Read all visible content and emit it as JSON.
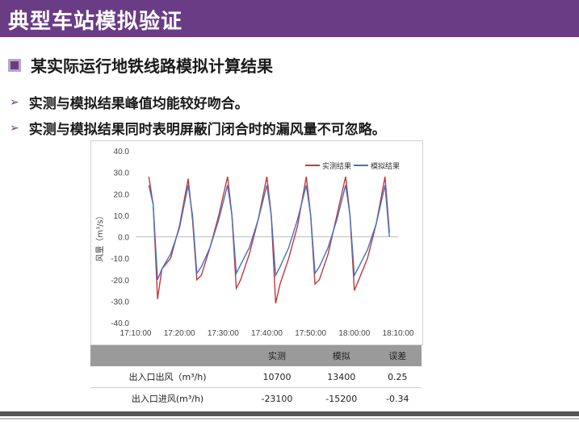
{
  "slide": {
    "title": "典型车站模拟验证",
    "bullet_main": "某实际运行地铁线路模拟计算结果",
    "bullets": [
      "实测与模拟结果峰值均能较好吻合。",
      "实测与模拟结果同时表明屏蔽门闭合时的漏风量不可忽略。"
    ]
  },
  "colors": {
    "accent": "#6b3c86",
    "measured": "#c0393b",
    "simulated": "#4472c4"
  },
  "chart_data": {
    "type": "line",
    "ylabel": "风量（m³/s）",
    "xlabel": "",
    "ylim": [
      -40,
      40
    ],
    "y_ticks": [
      "40.0",
      "30.0",
      "20.0",
      "10.0",
      "0.0",
      "-10.0",
      "-20.0",
      "-30.0",
      "-40.0"
    ],
    "x_ticks": [
      "17:10:00",
      "17:20:00",
      "17:30:00",
      "17:40:00",
      "17:50:00",
      "18:00:00",
      "18:10:00"
    ],
    "xlim": [
      "17:10:00",
      "18:10:00"
    ],
    "legend_position": "top-right",
    "series": [
      {
        "name": "实测结果",
        "color": "#c0393b",
        "x": [
          "17:13:00",
          "17:14:00",
          "17:15:00",
          "17:16:00",
          "17:18:00",
          "17:20:00",
          "17:22:00",
          "17:23:00",
          "17:24:00",
          "17:25:00",
          "17:27:00",
          "17:29:00",
          "17:31:00",
          "17:32:00",
          "17:33:00",
          "17:34:00",
          "17:36:00",
          "17:38:00",
          "17:40:00",
          "17:41:00",
          "17:42:00",
          "17:43:00",
          "17:45:00",
          "17:47:00",
          "17:49:00",
          "17:50:00",
          "17:51:00",
          "17:52:00",
          "17:54:00",
          "17:56:00",
          "17:58:00",
          "17:59:00",
          "18:00:00",
          "18:01:00",
          "18:03:00",
          "18:05:00",
          "18:07:00",
          "18:08:00"
        ],
        "values": [
          28,
          15,
          -29,
          -15,
          -10,
          5,
          27,
          8,
          -20,
          -18,
          -5,
          10,
          28,
          10,
          -24,
          -20,
          -8,
          8,
          28,
          10,
          -31,
          -22,
          -10,
          5,
          28,
          10,
          -22,
          -20,
          -8,
          10,
          28,
          10,
          -25,
          -20,
          -10,
          6,
          28,
          2
        ]
      },
      {
        "name": "模拟结果",
        "color": "#4472c4",
        "x": [
          "17:13:00",
          "17:14:00",
          "17:15:00",
          "17:16:00",
          "17:18:00",
          "17:20:00",
          "17:22:00",
          "17:23:00",
          "17:24:00",
          "17:25:00",
          "17:27:00",
          "17:29:00",
          "17:31:00",
          "17:32:00",
          "17:33:00",
          "17:34:00",
          "17:36:00",
          "17:38:00",
          "17:40:00",
          "17:41:00",
          "17:42:00",
          "17:43:00",
          "17:45:00",
          "17:47:00",
          "17:49:00",
          "17:50:00",
          "17:51:00",
          "17:52:00",
          "17:54:00",
          "17:56:00",
          "17:58:00",
          "17:59:00",
          "18:00:00",
          "18:01:00",
          "18:03:00",
          "18:05:00",
          "18:07:00",
          "18:08:00"
        ],
        "values": [
          24,
          15,
          -20,
          -15,
          -8,
          4,
          24,
          10,
          -17,
          -14,
          -5,
          8,
          24,
          10,
          -17,
          -13,
          -5,
          8,
          24,
          10,
          -18,
          -14,
          -5,
          8,
          24,
          10,
          -17,
          -14,
          -5,
          8,
          24,
          10,
          -18,
          -14,
          -6,
          6,
          24,
          0
        ]
      }
    ]
  },
  "table": {
    "headers": [
      "",
      "实测",
      "模拟",
      "误差"
    ],
    "rows": [
      [
        "出入口出风（m³/h)",
        "10700",
        "13400",
        "0.25"
      ],
      [
        "出入口进风(m³/h)",
        "-23100",
        "-15200",
        "-0.34"
      ]
    ]
  }
}
